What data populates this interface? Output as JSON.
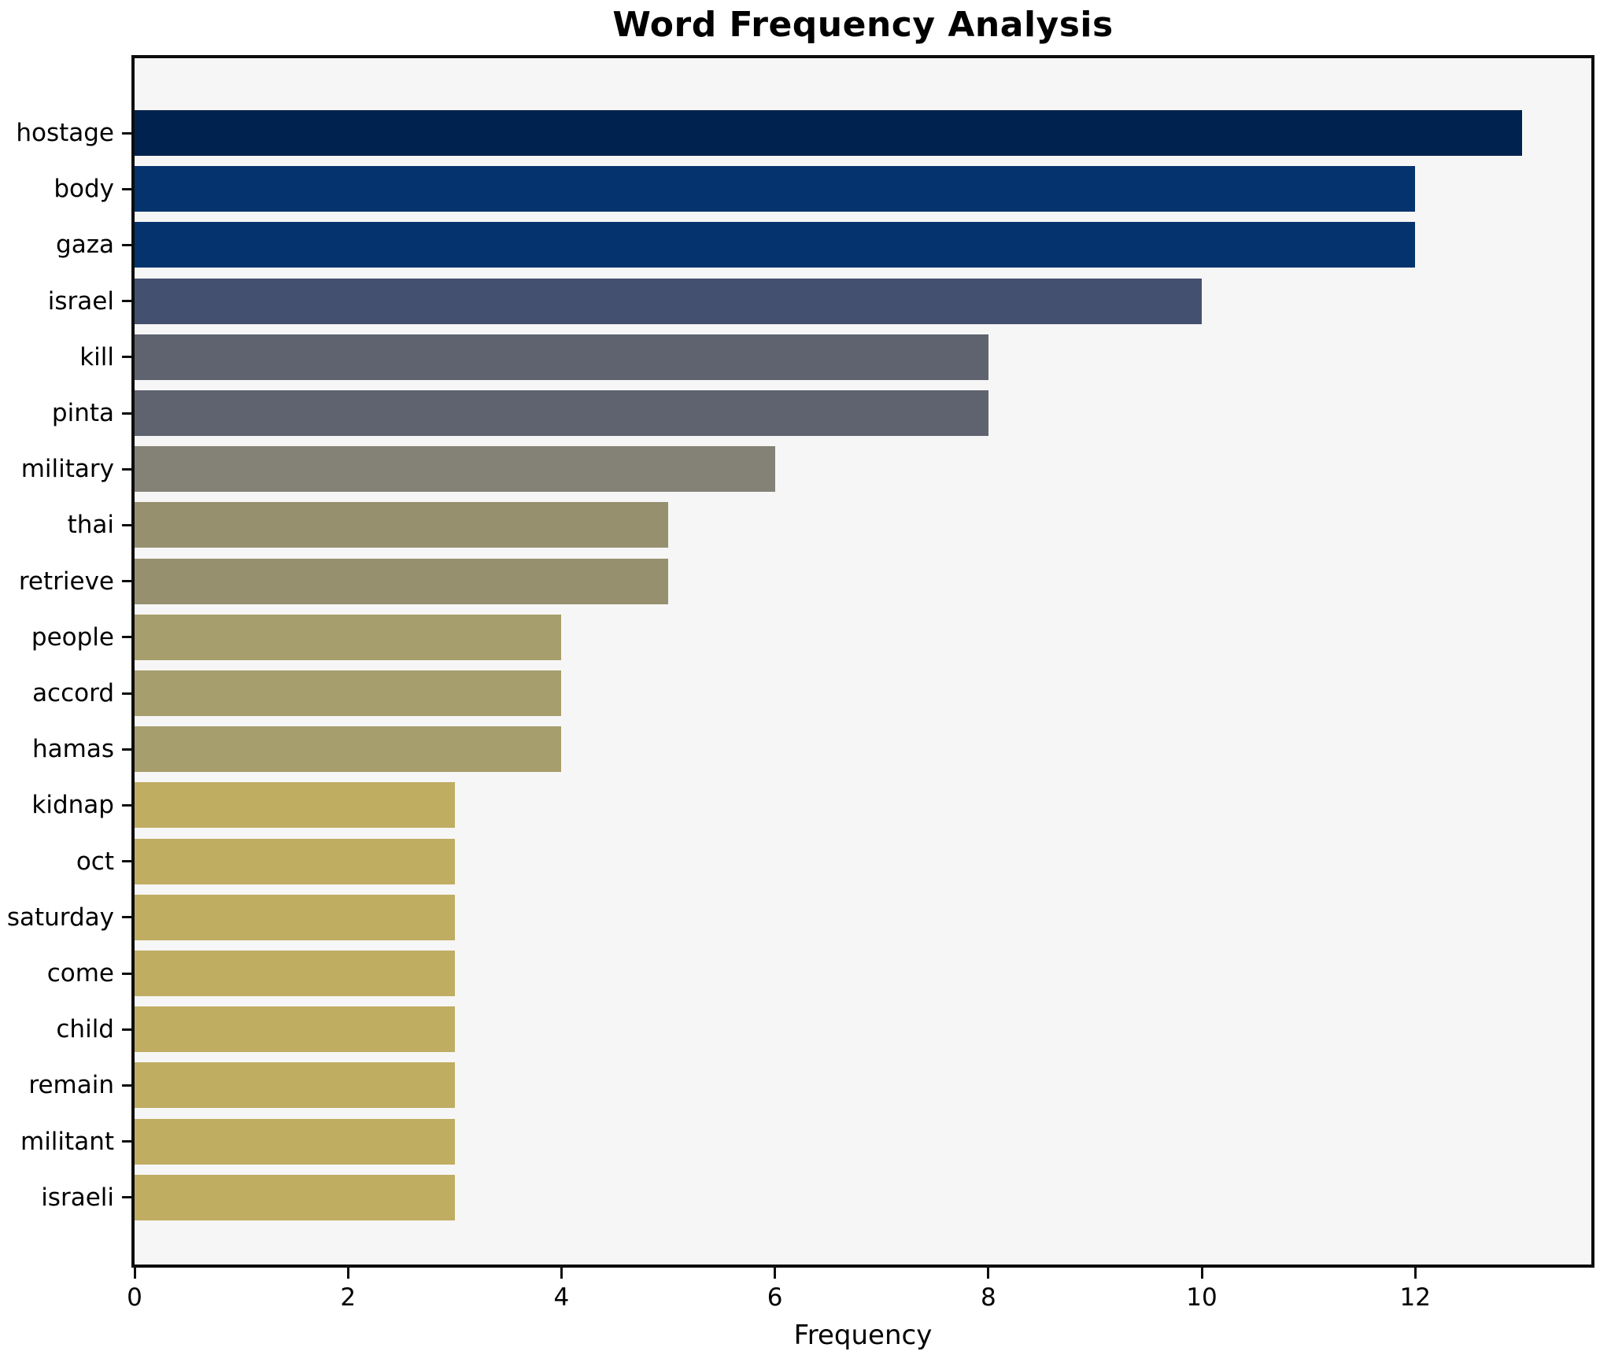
{
  "chart_data": {
    "type": "bar",
    "orientation": "horizontal",
    "title": "Word Frequency Analysis",
    "xlabel": "Frequency",
    "ylabel": "",
    "categories": [
      "hostage",
      "body",
      "gaza",
      "israel",
      "kill",
      "pinta",
      "military",
      "thai",
      "retrieve",
      "people",
      "accord",
      "hamas",
      "kidnap",
      "oct",
      "saturday",
      "come",
      "child",
      "remain",
      "militant",
      "israeli"
    ],
    "values": [
      13,
      12,
      12,
      10,
      8,
      8,
      6,
      5,
      5,
      4,
      4,
      4,
      3,
      3,
      3,
      3,
      3,
      3,
      3,
      3
    ],
    "bar_colors": [
      "#00224e",
      "#04336e",
      "#04336e",
      "#44506f",
      "#5f6370",
      "#5f6370",
      "#848277",
      "#96906f",
      "#96906f",
      "#a79e6d",
      "#a79e6d",
      "#a79e6d",
      "#bfad62",
      "#bfad62",
      "#bfad62",
      "#bfad62",
      "#bfad62",
      "#bfad62",
      "#bfad62",
      "#bfad62"
    ],
    "x_ticks": [
      0,
      2,
      4,
      6,
      8,
      10,
      12
    ],
    "xlim": [
      0,
      13.65
    ],
    "grid": false,
    "legend": "none",
    "plot_bg": "#f7f6f6",
    "figure_bg": "#ffffff",
    "spine_color": "#0d0d0d",
    "text_color": "#000000"
  }
}
